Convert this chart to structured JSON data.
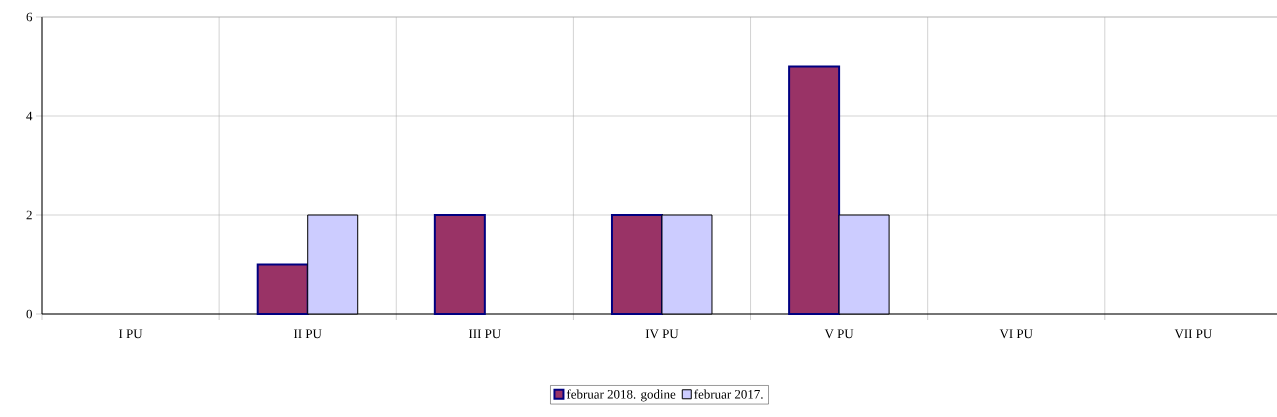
{
  "chart_data": {
    "type": "bar",
    "categories": [
      "I PU",
      "II PU",
      "III PU",
      "IV PU",
      "V PU",
      "VI PU",
      "VII PU"
    ],
    "series": [
      {
        "name": "februar 2018. godine",
        "color": "#993366",
        "values": [
          null,
          1,
          2,
          2,
          5,
          null,
          null
        ]
      },
      {
        "name": "februar 2017.",
        "color": "#ccccff",
        "values": [
          null,
          2,
          null,
          2,
          2,
          null,
          null
        ]
      }
    ],
    "ylim": [
      0,
      6
    ],
    "yticks": [
      0,
      2,
      4,
      6
    ],
    "grid": true,
    "legend": "bottom"
  }
}
